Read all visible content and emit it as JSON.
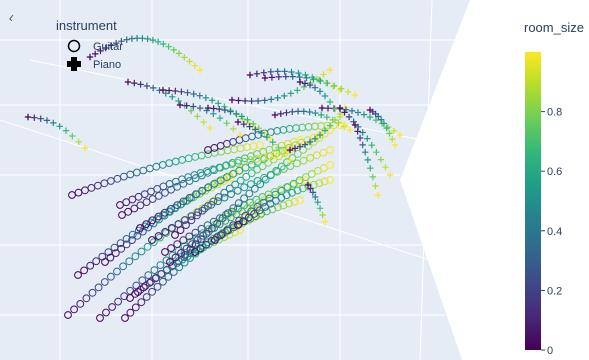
{
  "chart_data": {
    "type": "scatter",
    "projection": "3d",
    "title": "",
    "legend": {
      "title": "instrument",
      "placement": "top-left",
      "entries": [
        {
          "label": "Guitar",
          "symbol": "circle-open"
        },
        {
          "label": "Piano",
          "symbol": "cross"
        }
      ]
    },
    "colorbar": {
      "title": "room_size",
      "range": [
        0,
        1
      ],
      "ticks": [
        "0",
        "0.2",
        "0.4",
        "0.6",
        "0.8"
      ],
      "tick_values": [
        0,
        0.2,
        0.4,
        0.6,
        0.8
      ],
      "colorscale": [
        "#440154",
        "#482878",
        "#3e4989",
        "#31688e",
        "#26828e",
        "#1f9e89",
        "#35b779",
        "#6ece58",
        "#b5de2b",
        "#fde725"
      ]
    },
    "scene": {
      "background": "#e5ecf6",
      "grid": true,
      "gridcolor": "#ffffff"
    },
    "series": [
      {
        "name": "Guitar",
        "symbol": "circle-open",
        "room_size_range": [
          0,
          1
        ],
        "trajectory_count": 20
      },
      {
        "name": "Piano",
        "symbol": "cross",
        "room_size_range": [
          0,
          1
        ],
        "trajectory_count": 18
      }
    ]
  }
}
